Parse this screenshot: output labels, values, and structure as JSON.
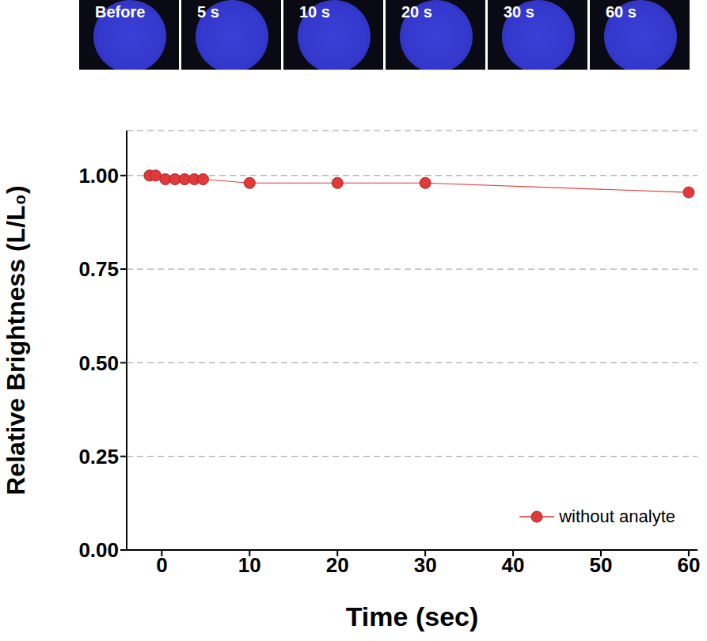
{
  "chart_data": {
    "type": "line",
    "image_labels": [
      "Before",
      "5 s",
      "10 s",
      "20 s",
      "30 s",
      "60 s"
    ],
    "x_label": "Time (sec)",
    "y_label": "Relative Brightness (L/L₀)",
    "x": [
      -1.4,
      -0.7,
      0.4,
      1.5,
      2.6,
      3.7,
      4.7,
      10,
      20,
      30,
      60
    ],
    "series": [
      {
        "name": "without analyte",
        "color": "#e03a3a",
        "marker": "circle",
        "line_style": "solid",
        "values": [
          1.0,
          1.0,
          0.99,
          0.99,
          0.99,
          0.99,
          0.99,
          0.98,
          0.98,
          0.98,
          0.955
        ]
      }
    ],
    "xlim": [
      -4,
      61
    ],
    "xticks": [
      0,
      10,
      20,
      30,
      40,
      50,
      60
    ],
    "ylim": [
      0,
      1.12
    ],
    "yticks": [
      {
        "value": 0,
        "label": "0.00"
      },
      {
        "value": 0.25,
        "label": "0.25"
      },
      {
        "value": 0.5,
        "label": "0.50"
      },
      {
        "value": 0.75,
        "label": "0.75"
      },
      {
        "value": 1,
        "label": "1.00"
      }
    ],
    "grid": true,
    "legend": "lower right"
  }
}
